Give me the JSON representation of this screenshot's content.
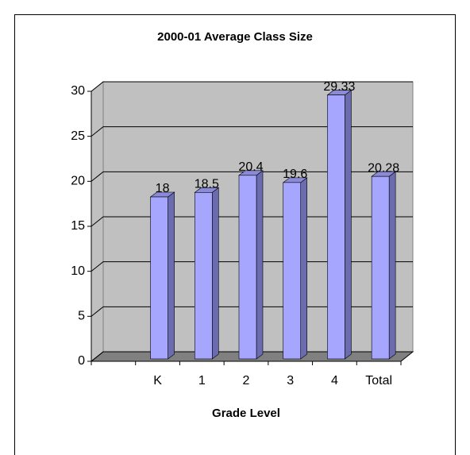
{
  "chart_data": {
    "type": "bar3d",
    "title": "2000-01 Average Class Size",
    "x_label": "Grade Level",
    "categories": [
      null,
      "K",
      "1",
      "2",
      "3",
      "4",
      "Total"
    ],
    "values": [
      null,
      18,
      18.5,
      20.4,
      19.6,
      29.33,
      20.28
    ],
    "color": "#a6a6ff",
    "ylim": [
      0,
      30
    ],
    "yticks": [
      0,
      5,
      10,
      15,
      20,
      25,
      30
    ],
    "grid": true
  }
}
